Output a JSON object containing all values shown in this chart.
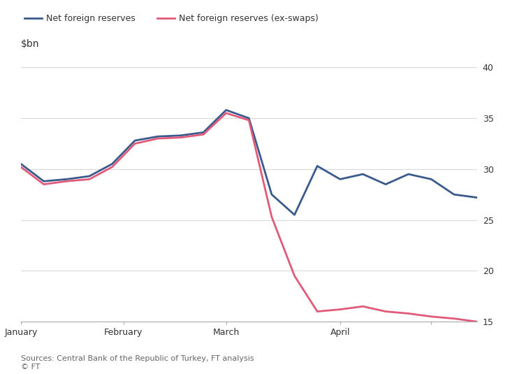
{
  "title_ylabel": "$bn",
  "source_text": "Sources: Central Bank of the Republic of Turkey, FT analysis\n© FT",
  "legend": [
    "Net foreign reserves",
    "Net foreign reserves (ex-swaps)"
  ],
  "line_colors": [
    "#3a5a8c",
    "#e05a7a"
  ],
  "ylim": [
    15,
    40
  ],
  "yticks": [
    15,
    20,
    25,
    30,
    35,
    40
  ],
  "background_color": "#ffffff",
  "grid_color": "#d8d8d8",
  "text_color": "#333333",
  "net_foreign_reserves": {
    "x": [
      0,
      1,
      2,
      3,
      4,
      5,
      6,
      7,
      8,
      9,
      10,
      11,
      12,
      13,
      14,
      15,
      16,
      17,
      18,
      19,
      20
    ],
    "y": [
      30.5,
      28.8,
      29.0,
      29.3,
      30.5,
      32.8,
      33.2,
      33.3,
      33.6,
      35.8,
      35.0,
      27.5,
      25.5,
      30.3,
      29.0,
      29.5,
      28.5,
      29.5,
      29.0,
      27.5,
      27.2
    ]
  },
  "net_foreign_reserves_exswaps": {
    "x": [
      0,
      1,
      2,
      3,
      4,
      5,
      6,
      7,
      8,
      9,
      10,
      11,
      12,
      13,
      14,
      15,
      16,
      17,
      18,
      19,
      20
    ],
    "y": [
      30.2,
      28.5,
      28.8,
      29.0,
      30.2,
      32.5,
      33.0,
      33.1,
      33.4,
      35.5,
      34.8,
      25.3,
      19.5,
      16.0,
      16.2,
      16.5,
      16.0,
      15.8,
      15.5,
      15.3,
      15.0
    ]
  },
  "xtick_positions": [
    0,
    4.5,
    9,
    14,
    18
  ],
  "xtick_labels": [
    "January",
    "February",
    "March",
    "April",
    ""
  ],
  "xlim": [
    0,
    20
  ]
}
